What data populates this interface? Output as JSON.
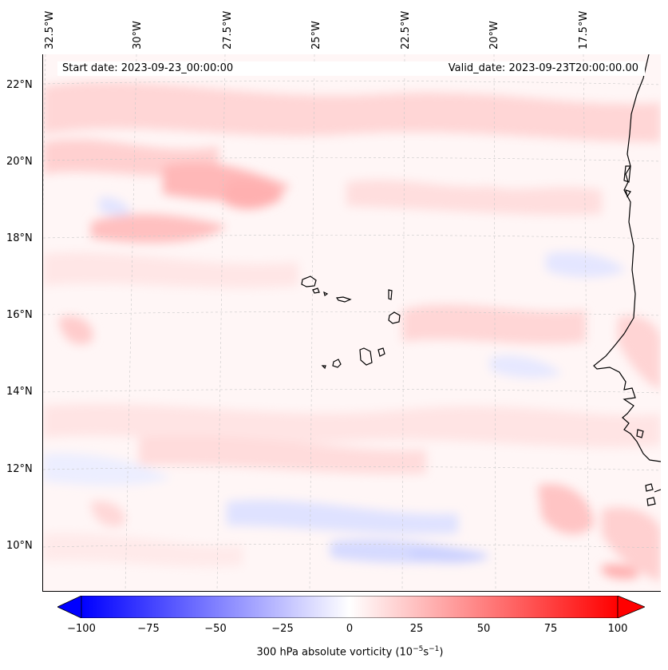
{
  "map": {
    "start_date": "Start date: 2023-09-23_00:00:00",
    "valid_date": "Valid_date: 2023-09-23T20:00:00.00",
    "lon_labels": [
      "32.5°W",
      "30°W",
      "27.5°W",
      "25°W",
      "22.5°W",
      "20°W",
      "17.5°W"
    ],
    "lat_labels": [
      "22°N",
      "20°N",
      "18°N",
      "16°N",
      "14°N",
      "12°N",
      "10°N"
    ],
    "colorbar": {
      "label": "300 hPa absolute vorticity (10",
      "label_exp1": "−5",
      "label_mid": "s",
      "label_exp2": "−1",
      "label_end": ")",
      "ticks": [
        "−100",
        "−75",
        "−50",
        "−25",
        "0",
        "25",
        "50",
        "75",
        "100"
      ],
      "min": -100,
      "max": 100,
      "colormap": "bwr",
      "low_color": "#0000ff",
      "mid_color": "#ffffff",
      "high_color": "#ff0000"
    }
  }
}
